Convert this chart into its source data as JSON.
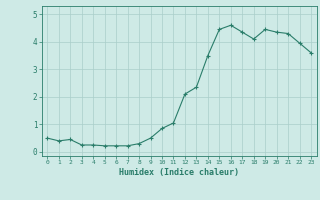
{
  "x": [
    0,
    1,
    2,
    3,
    4,
    5,
    6,
    7,
    8,
    9,
    10,
    11,
    12,
    13,
    14,
    15,
    16,
    17,
    18,
    19,
    20,
    21,
    22,
    23
  ],
  "y": [
    0.5,
    0.4,
    0.45,
    0.25,
    0.25,
    0.22,
    0.22,
    0.22,
    0.3,
    0.5,
    0.85,
    1.05,
    2.1,
    2.35,
    3.5,
    4.45,
    4.6,
    4.35,
    4.1,
    4.45,
    4.35,
    4.3,
    3.95,
    3.6
  ],
  "xlabel": "Humidex (Indice chaleur)",
  "ylim": [
    -0.15,
    5.3
  ],
  "xlim": [
    -0.5,
    23.5
  ],
  "line_color": "#2a7d6a",
  "bg_color": "#ceeae6",
  "grid_color": "#aaceca",
  "tick_color": "#2a7d6a",
  "xlabel_color": "#2a7d6a",
  "yticks": [
    0,
    1,
    2,
    3,
    4,
    5
  ],
  "xtick_labels": [
    "0",
    "1",
    "2",
    "3",
    "4",
    "5",
    "6",
    "7",
    "8",
    "9",
    "10",
    "11",
    "12",
    "13",
    "14",
    "15",
    "16",
    "17",
    "18",
    "19",
    "20",
    "21",
    "22",
    "23"
  ]
}
